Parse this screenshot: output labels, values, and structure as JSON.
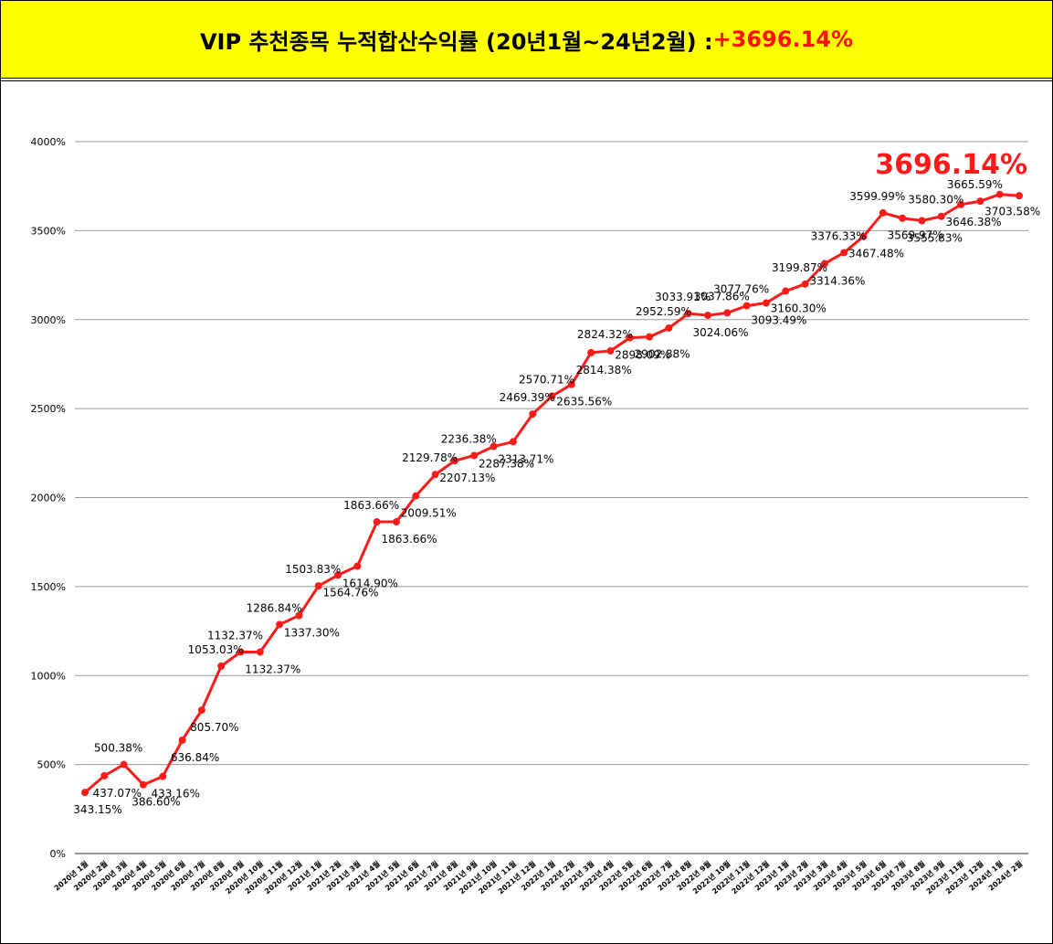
{
  "banner": {
    "title_main": "VIP 추천종목 누적합산수익률 (20년1월~24년2월) : ",
    "title_highlight": "+3696.14%"
  },
  "chart_data": {
    "type": "line",
    "highlight_label": "3696.14%",
    "line_color": "#ff1a1a",
    "grid": true,
    "ylim": [
      0,
      4000
    ],
    "yticks": [
      "0%",
      "500%",
      "1000%",
      "1500%",
      "2000%",
      "2500%",
      "3000%",
      "3500%",
      "4000%"
    ],
    "categories": [
      "2020년 1월",
      "2020년 2월",
      "2020년 3월",
      "2020년 4월",
      "2020년 5월",
      "2020년 6월",
      "2020년 7월",
      "2020년 8월",
      "2020년 9월",
      "2020년 10월",
      "2020년 11월",
      "2020년 12월",
      "2021년 1월",
      "2021년 2월",
      "2021년 3월",
      "2021년 4월",
      "2021년 5월",
      "2021년 6월",
      "2021년 7월",
      "2021년 8월",
      "2021년 9월",
      "2021년 10월",
      "2021년 11월",
      "2021년 12월",
      "2022년 1월",
      "2022년 2월",
      "2022년 3월",
      "2022년 4월",
      "2022년 5월",
      "2022년 6월",
      "2022년 7월",
      "2022년 8월",
      "2022년 9월",
      "2022년 10월",
      "2022년 11월",
      "2022년 12월",
      "2023년 1월",
      "2023년 2월",
      "2023년 3월",
      "2023년 4월",
      "2023년 5월",
      "2023년 6월",
      "2023년 7월",
      "2023년 8월",
      "2023년 9월",
      "2023년 11월",
      "2023년 12월",
      "2024년 1월",
      "2024년 2월"
    ],
    "values": [
      343.15,
      437.07,
      500.38,
      386.6,
      433.16,
      636.84,
      805.7,
      1053.03,
      1132.37,
      1132.37,
      1286.84,
      1337.3,
      1503.83,
      1564.76,
      1614.9,
      1863.66,
      1863.66,
      2009.51,
      2129.78,
      2207.13,
      2236.38,
      2287.38,
      2313.71,
      2469.39,
      2570.71,
      2635.56,
      2814.38,
      2824.32,
      2898.09,
      2902.88,
      2952.59,
      3033.91,
      3024.06,
      3037.86,
      3077.76,
      3093.49,
      3160.3,
      3199.87,
      3314.36,
      3376.33,
      3467.48,
      3599.99,
      3569.97,
      3555.83,
      3580.3,
      3646.38,
      3665.59,
      3703.58,
      3696.14
    ],
    "labels": [
      "343.15%",
      "437.07%",
      "500.38%",
      "386.60%",
      "433.16%",
      "636.84%",
      "805.70%",
      "1053.03%",
      "1132.37%",
      "1132.37%",
      "1286.84%",
      "1337.30%",
      "1503.83%",
      "1564.76%",
      "1614.90%",
      "1863.66%",
      "1863.66%",
      "2009.51%",
      "2129.78%",
      "2207.13%",
      "2236.38%",
      "2287.38%",
      "2313.71%",
      "2469.39%",
      "2570.71%",
      "2635.56%",
      "2814.38%",
      "2824.32%",
      "2898.09%",
      "2902.88%",
      "2952.59%",
      "3033.91%",
      "3024.06%",
      "3037.86%",
      "3077.76%",
      "3093.49%",
      "3160.30%",
      "3199.87%",
      "3314.36%",
      "3376.33%",
      "3467.48%",
      "3599.99%",
      "3569.97%",
      "3555.83%",
      "3580.30%",
      "3646.38%",
      "3665.59%",
      "3703.58%",
      ""
    ],
    "label_side": [
      "below",
      "below",
      "above",
      "below",
      "below",
      "below",
      "below",
      "above",
      "above",
      "below",
      "above",
      "below",
      "above",
      "below",
      "below",
      "above",
      "below",
      "below",
      "above",
      "below",
      "above",
      "below",
      "below",
      "above",
      "above",
      "below",
      "below",
      "above",
      "below",
      "below",
      "above",
      "above",
      "below",
      "above",
      "above",
      "below",
      "below",
      "above",
      "below",
      "above",
      "below",
      "above",
      "below",
      "below",
      "above",
      "below",
      "above",
      "below",
      "none"
    ]
  }
}
